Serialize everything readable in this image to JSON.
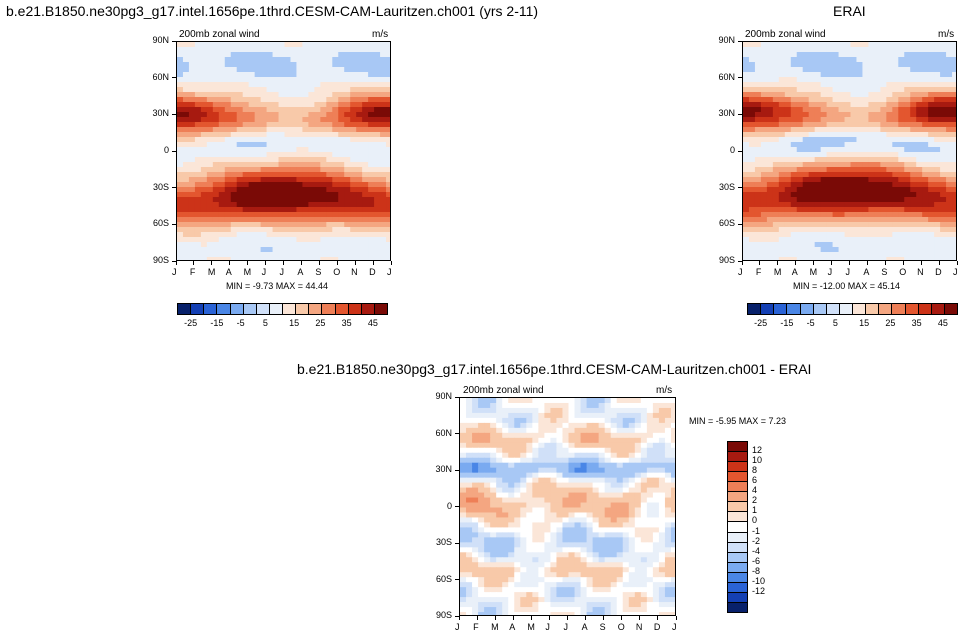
{
  "page": {
    "title_left": "b.e21.B1850.ne30pg3_g17.intel.1656pe.1thrd.CESM-CAM-Lauritzen.ch001 (yrs 2-11)",
    "title_right": "ERAI",
    "title_diff": "b.e21.B1850.ne30pg3_g17.intel.1656pe.1thrd.CESM-CAM-Lauritzen.ch001 - ERAI"
  },
  "colors": {
    "neg_scale": [
      "#08216b",
      "#1440b4",
      "#2a63d6",
      "#4a86e6",
      "#7aaaf0",
      "#a8c8f5",
      "#d0e0f8",
      "#e9f0f9"
    ],
    "pos_scale": [
      "#fbe6d8",
      "#f8c9a9",
      "#f4a681",
      "#ee7f57",
      "#e3562f",
      "#cc3318",
      "#a71a10",
      "#7a0a06"
    ]
  },
  "chart_data": [
    {
      "type": "heatmap",
      "panel_label": "200mb zonal wind",
      "units": "m/s",
      "x_ticks": [
        "J",
        "F",
        "M",
        "A",
        "M",
        "J",
        "J",
        "A",
        "S",
        "O",
        "N",
        "D",
        "J"
      ],
      "y_ticks": [
        "90N",
        "60N",
        "30N",
        "0",
        "30S",
        "60S",
        "90S"
      ],
      "stats": "MIN = -9.73 MAX = 44.44",
      "colorbar_labels": [
        "-25",
        "-15",
        "-5",
        "5",
        "15",
        "25",
        "35",
        "45"
      ],
      "jets": {
        "nh_lat": 28,
        "nh_max": 38,
        "sh_lat": -38,
        "sh_max": 44,
        "eq_min": -9.7
      }
    },
    {
      "type": "heatmap",
      "panel_label": "200mb zonal wind",
      "units": "m/s",
      "x_ticks": [
        "J",
        "F",
        "M",
        "A",
        "M",
        "J",
        "J",
        "A",
        "S",
        "O",
        "N",
        "D",
        "J"
      ],
      "y_ticks": [
        "90N",
        "60N",
        "30N",
        "0",
        "30S",
        "60S",
        "90S"
      ],
      "stats": "MIN = -12.00 MAX = 45.14",
      "colorbar_labels": [
        "-25",
        "-15",
        "-5",
        "5",
        "15",
        "25",
        "35",
        "45"
      ],
      "jets": {
        "nh_lat": 30,
        "nh_max": 40,
        "sh_lat": -35,
        "sh_max": 45,
        "eq_min": -12.0
      }
    },
    {
      "type": "heatmap",
      "panel_label": "200mb zonal wind",
      "units": "m/s",
      "x_ticks": [
        "J",
        "F",
        "M",
        "A",
        "M",
        "J",
        "J",
        "A",
        "S",
        "O",
        "N",
        "D",
        "J"
      ],
      "y_ticks": [
        "90N",
        "60N",
        "30N",
        "0",
        "30S",
        "60S",
        "90S"
      ],
      "stats": "MIN = -5.95 MAX =  7.23",
      "colorbar_labels": [
        "12",
        "10",
        "8",
        "6",
        "4",
        "2",
        "1",
        "0",
        "-1",
        "-2",
        "-4",
        "-6",
        "-8",
        "-10",
        "-12"
      ]
    }
  ]
}
